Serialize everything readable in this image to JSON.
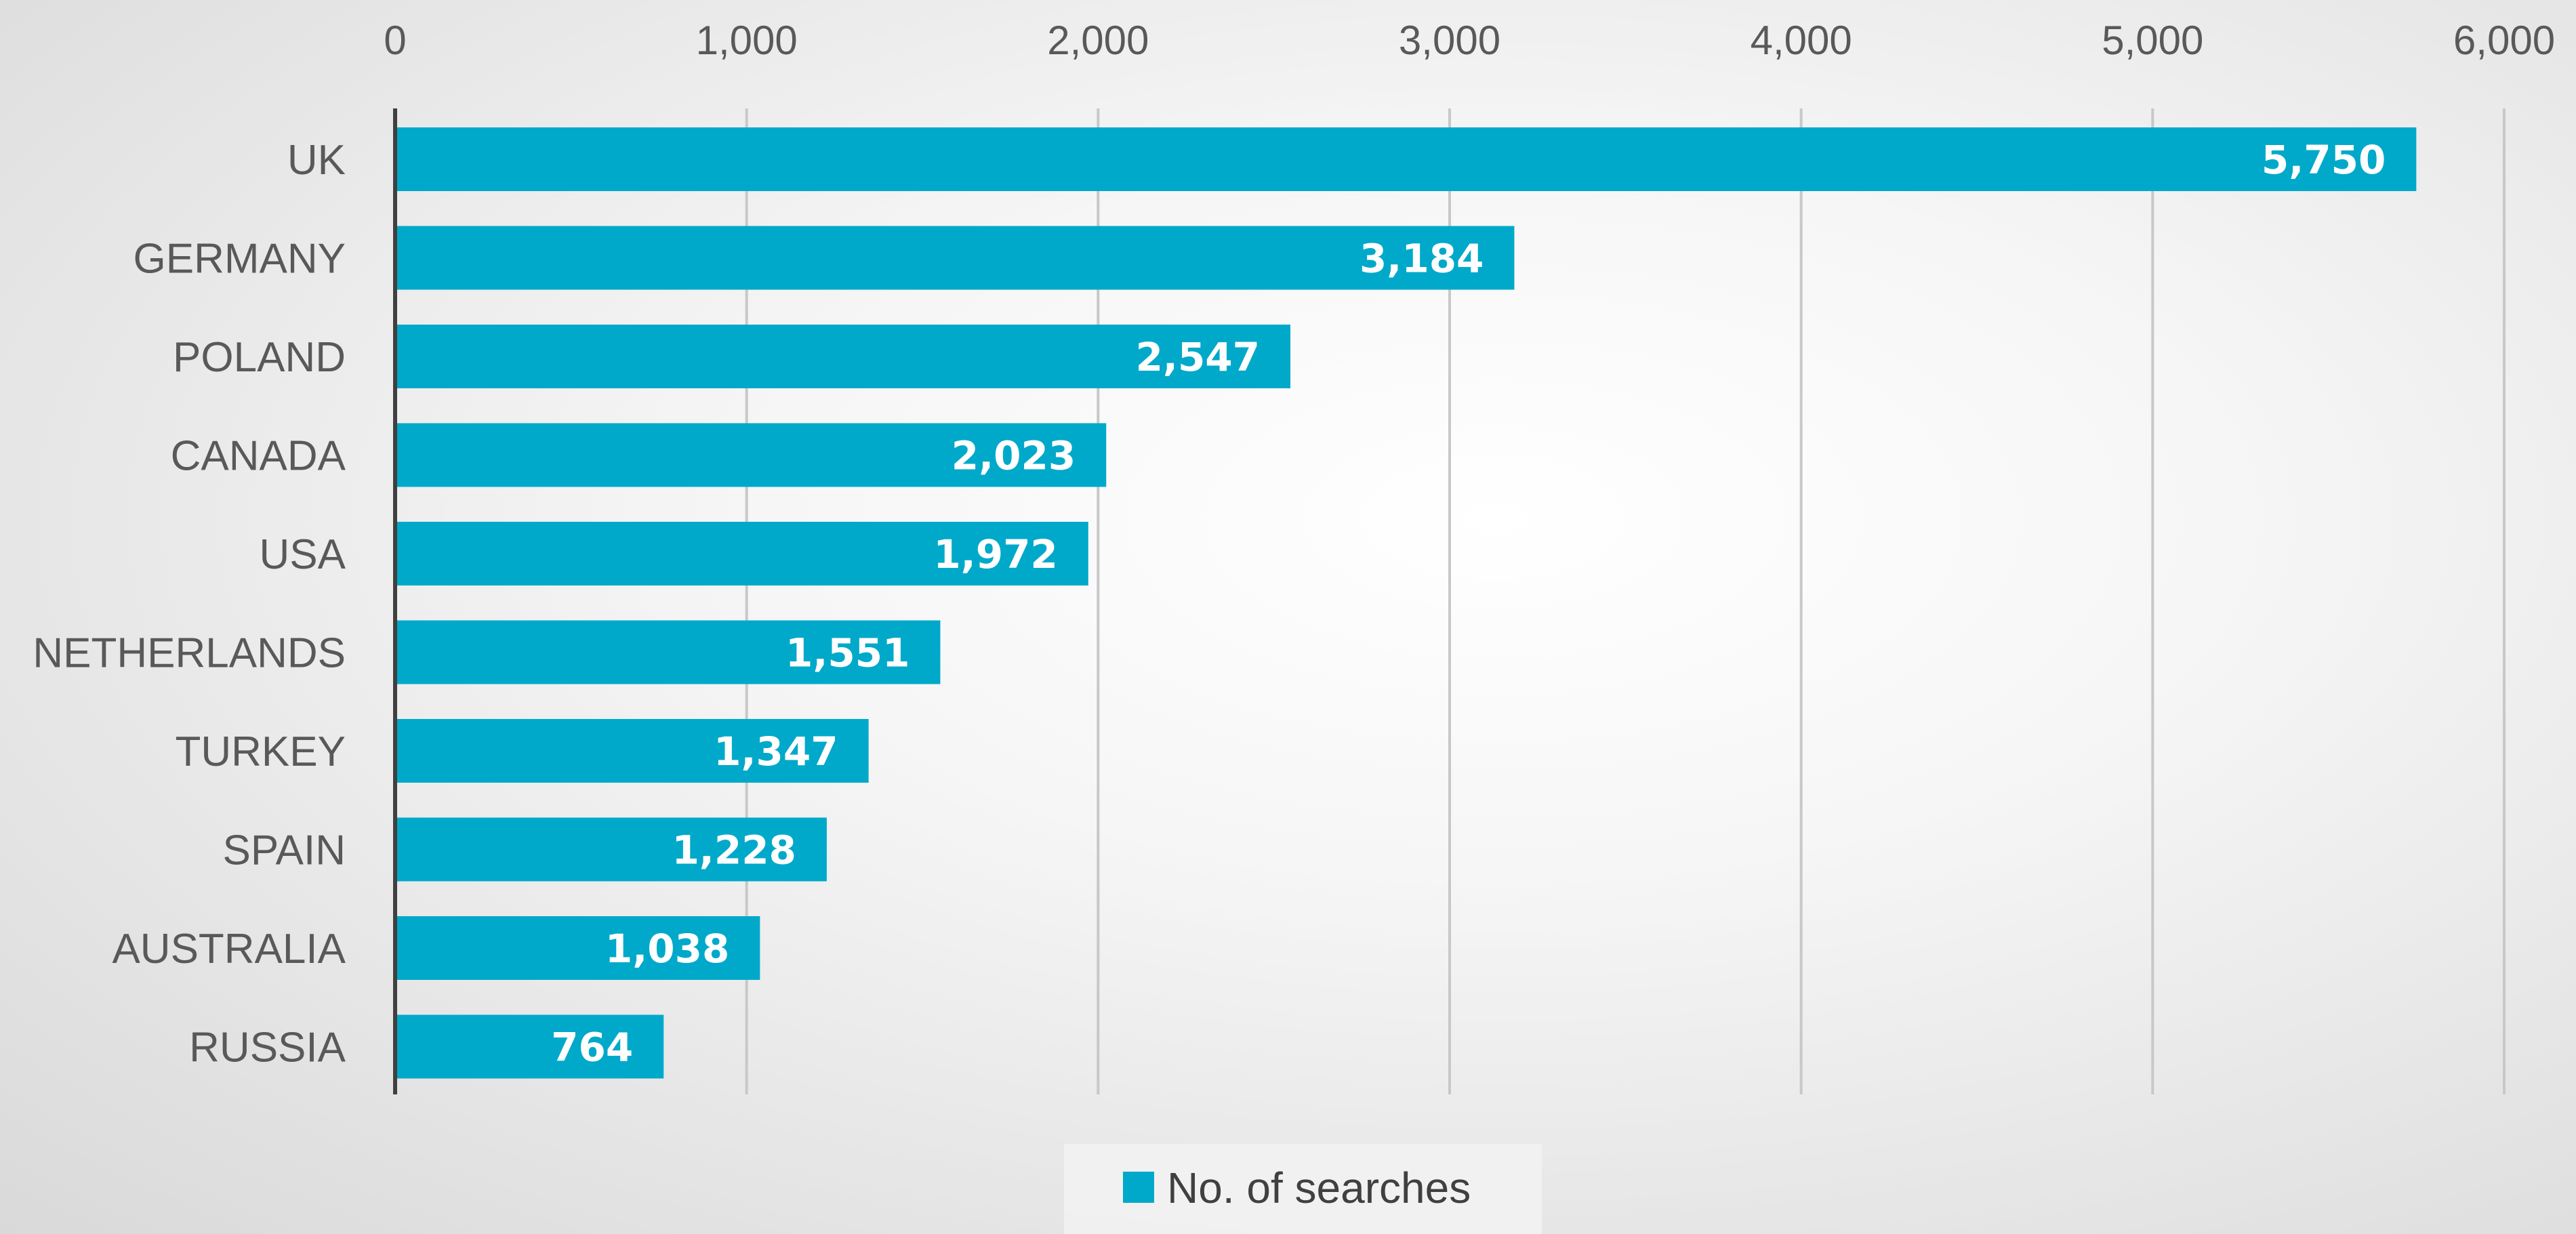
{
  "chart_data": {
    "type": "bar",
    "orientation": "horizontal",
    "categories": [
      "UK",
      "GERMANY",
      "POLAND",
      "CANADA",
      "USA",
      "NETHERLANDS",
      "TURKEY",
      "SPAIN",
      "AUSTRALIA",
      "RUSSIA"
    ],
    "series": [
      {
        "name": "No. of searches",
        "values": [
          5750,
          3184,
          2547,
          2023,
          1972,
          1551,
          1347,
          1228,
          1038,
          764
        ],
        "data_labels": [
          "5,750",
          "3,184",
          "2,547",
          "2,023",
          "1,972",
          "1,551",
          "1,347",
          "1,228",
          "1,038",
          "764"
        ]
      }
    ],
    "xlim": [
      0,
      6000
    ],
    "x_ticks": [
      0,
      1000,
      2000,
      3000,
      4000,
      5000,
      6000
    ],
    "x_tick_labels": [
      "0",
      "1,000",
      "2,000",
      "3,000",
      "4,000",
      "5,000",
      "6,000"
    ],
    "x_axis_position": "top",
    "grid": true,
    "legend_position": "bottom",
    "title": "",
    "xlabel": "",
    "ylabel": "",
    "colors": {
      "bar": "#00a9c9",
      "grid": "#c8c8c8",
      "axis": "#404040"
    }
  }
}
